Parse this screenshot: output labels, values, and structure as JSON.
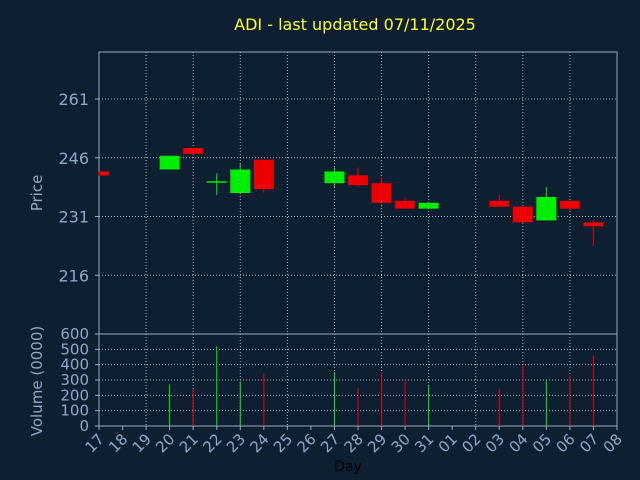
{
  "chart_data": {
    "type": "candlestick",
    "title": "ADI - last updated 07/11/2025",
    "xlabel": "Day",
    "price_panel": {
      "ylabel": "Price",
      "ylim": [
        201,
        273
      ],
      "yticks": [
        "216",
        "231",
        "246",
        "261"
      ],
      "grid": true
    },
    "volume_panel": {
      "ylabel": "Volume (0000)",
      "ylim": [
        0,
        600
      ],
      "yticks": [
        "0",
        "100",
        "200",
        "300",
        "400",
        "500",
        "600"
      ],
      "grid": true
    },
    "x_ticks": [
      "17",
      "18",
      "19",
      "20",
      "21",
      "22",
      "23",
      "24",
      "25",
      "26",
      "27",
      "28",
      "29",
      "30",
      "31",
      "01",
      "02",
      "03",
      "04",
      "05",
      "06",
      "07",
      "08"
    ],
    "candles": [
      {
        "day": "17",
        "open": 242.5,
        "close": 241.5,
        "high": 242.5,
        "low": 241.5,
        "volume": 0
      },
      {
        "day": "20",
        "open": 243.0,
        "close": 246.5,
        "high": 246.5,
        "low": 243.0,
        "volume": 270
      },
      {
        "day": "21",
        "open": 248.5,
        "close": 247.0,
        "high": 248.5,
        "low": 246.5,
        "volume": 240
      },
      {
        "day": "22",
        "open": 240.0,
        "close": 240.0,
        "high": 242.0,
        "low": 236.5,
        "volume": 520
      },
      {
        "day": "23",
        "open": 237.0,
        "close": 243.0,
        "high": 244.5,
        "low": 237.0,
        "volume": 290
      },
      {
        "day": "24",
        "open": 245.5,
        "close": 238.0,
        "high": 245.5,
        "low": 237.0,
        "volume": 340
      },
      {
        "day": "27",
        "open": 239.5,
        "close": 242.5,
        "high": 243.5,
        "low": 238.5,
        "volume": 350
      },
      {
        "day": "28",
        "open": 241.5,
        "close": 239.0,
        "high": 243.5,
        "low": 238.5,
        "volume": 250
      },
      {
        "day": "29",
        "open": 239.5,
        "close": 234.5,
        "high": 241.0,
        "low": 234.5,
        "volume": 350
      },
      {
        "day": "30",
        "open": 235.0,
        "close": 233.0,
        "high": 236.0,
        "low": 233.0,
        "volume": 290
      },
      {
        "day": "31",
        "open": 233.0,
        "close": 234.5,
        "high": 234.5,
        "low": 233.0,
        "volume": 260
      },
      {
        "day": "03",
        "open": 235.0,
        "close": 233.5,
        "high": 236.5,
        "low": 233.5,
        "volume": 240
      },
      {
        "day": "04",
        "open": 233.5,
        "close": 229.5,
        "high": 233.5,
        "low": 229.5,
        "volume": 400
      },
      {
        "day": "05",
        "open": 230.0,
        "close": 236.0,
        "high": 238.5,
        "low": 230.0,
        "volume": 300
      },
      {
        "day": "06",
        "open": 235.0,
        "close": 233.0,
        "high": 235.0,
        "low": 232.5,
        "volume": 330
      },
      {
        "day": "07",
        "open": 229.5,
        "close": 228.5,
        "high": 230.0,
        "low": 223.5,
        "volume": 460
      }
    ],
    "colors": {
      "up": "#00ee00",
      "down": "#ee0000",
      "background": "#0f1f32",
      "axis": "#9aa9bd",
      "grid": "#c8d0dc",
      "title": "#ffff33",
      "labels": "#8fa8c8"
    }
  }
}
